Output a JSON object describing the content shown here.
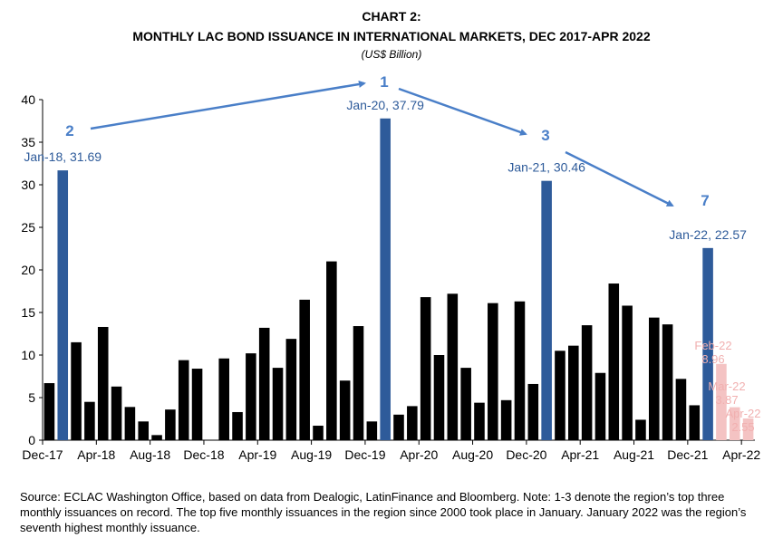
{
  "chart_title": "CHART 2:",
  "chart_subtitle": "MONTHLY LAC BOND ISSUANCE IN INTERNATIONAL MARKETS, DEC 2017-APR 2022",
  "chart_units": "(US$ Billion)",
  "source_note": "Source: ECLAC Washington Office, based on data from Dealogic, LatinFinance and Bloomberg. Note: 1-3 denote the region’s top three monthly issuances on record. The top five monthly issuances in the region since 2000 took place in January. January 2022 was the region’s seventh highest monthly issuance.",
  "colors": {
    "default": "#000000",
    "highlight": "#2e5b9a",
    "projection": "#f4c3c3",
    "accent_text": "#2e5b9a",
    "projection_text": "#f1b0b0",
    "arrow": "#4a7fc8"
  },
  "chart_data": {
    "type": "bar",
    "title": "MONTHLY LAC BOND ISSUANCE IN INTERNATIONAL MARKETS, DEC 2017-APR 2022",
    "ylabel": "US$ Billion",
    "ylim": [
      0,
      40
    ],
    "yticks": [
      "0",
      "5",
      "10",
      "15",
      "20",
      "25",
      "30",
      "35",
      "40"
    ],
    "xtick_labels": [
      {
        "index": 0,
        "label": "Dec-17"
      },
      {
        "index": 4,
        "label": "Apr-18"
      },
      {
        "index": 8,
        "label": "Aug-18"
      },
      {
        "index": 12,
        "label": "Dec-18"
      },
      {
        "index": 16,
        "label": "Apr-19"
      },
      {
        "index": 20,
        "label": "Aug-19"
      },
      {
        "index": 24,
        "label": "Dec-19"
      },
      {
        "index": 28,
        "label": "Apr-20"
      },
      {
        "index": 32,
        "label": "Aug-20"
      },
      {
        "index": 36,
        "label": "Dec-20"
      },
      {
        "index": 40,
        "label": "Apr-21"
      },
      {
        "index": 44,
        "label": "Aug-21"
      },
      {
        "index": 48,
        "label": "Dec-21"
      },
      {
        "index": 52,
        "label": "Apr-22"
      }
    ],
    "categories": [
      "Dec-17",
      "Jan-18",
      "Feb-18",
      "Mar-18",
      "Apr-18",
      "May-18",
      "Jun-18",
      "Jul-18",
      "Aug-18",
      "Sep-18",
      "Oct-18",
      "Nov-18",
      "Dec-18",
      "Jan-19",
      "Feb-19",
      "Mar-19",
      "Apr-19",
      "May-19",
      "Jun-19",
      "Jul-19",
      "Aug-19",
      "Sep-19",
      "Oct-19",
      "Nov-19",
      "Dec-19",
      "Jan-20",
      "Feb-20",
      "Mar-20",
      "Apr-20",
      "May-20",
      "Jun-20",
      "Jul-20",
      "Aug-20",
      "Sep-20",
      "Oct-20",
      "Nov-20",
      "Dec-20",
      "Jan-21",
      "Feb-21",
      "Mar-21",
      "Apr-21",
      "May-21",
      "Jun-21",
      "Jul-21",
      "Aug-21",
      "Sep-21",
      "Oct-21",
      "Nov-21",
      "Dec-21",
      "Jan-22",
      "Feb-22",
      "Mar-22",
      "Apr-22"
    ],
    "values": [
      6.7,
      31.69,
      11.5,
      4.5,
      13.3,
      6.3,
      3.9,
      2.2,
      0.6,
      3.6,
      9.4,
      8.4,
      0,
      9.6,
      3.3,
      10.2,
      13.2,
      8.5,
      11.9,
      16.5,
      1.7,
      21.0,
      7.0,
      13.4,
      2.2,
      37.79,
      3.0,
      4.0,
      16.8,
      10.0,
      17.2,
      8.5,
      4.4,
      16.1,
      4.7,
      16.3,
      6.6,
      30.46,
      10.5,
      11.1,
      13.5,
      7.9,
      18.4,
      15.8,
      2.4,
      14.4,
      13.6,
      7.2,
      4.1,
      22.57,
      8.96,
      3.87,
      2.55
    ],
    "highlight_indices": [
      1,
      25,
      37,
      49
    ],
    "projection_indices": [
      50,
      51,
      52
    ],
    "annotations": [
      {
        "index": 1,
        "label": "Jan-18, 31.69",
        "rank": "2"
      },
      {
        "index": 25,
        "label": "Jan-20, 37.79",
        "rank": "1"
      },
      {
        "index": 37,
        "label": "Jan-21, 30.46",
        "rank": "3"
      },
      {
        "index": 49,
        "label": "Jan-22, 22.57",
        "rank": "7"
      }
    ],
    "projection_labels": [
      {
        "index": 50,
        "month": "Feb-22",
        "value": "8.96"
      },
      {
        "index": 51,
        "month": "Mar-22",
        "value": "3.87"
      },
      {
        "index": 52,
        "month": "Apr-22",
        "value": "2.55"
      }
    ]
  }
}
